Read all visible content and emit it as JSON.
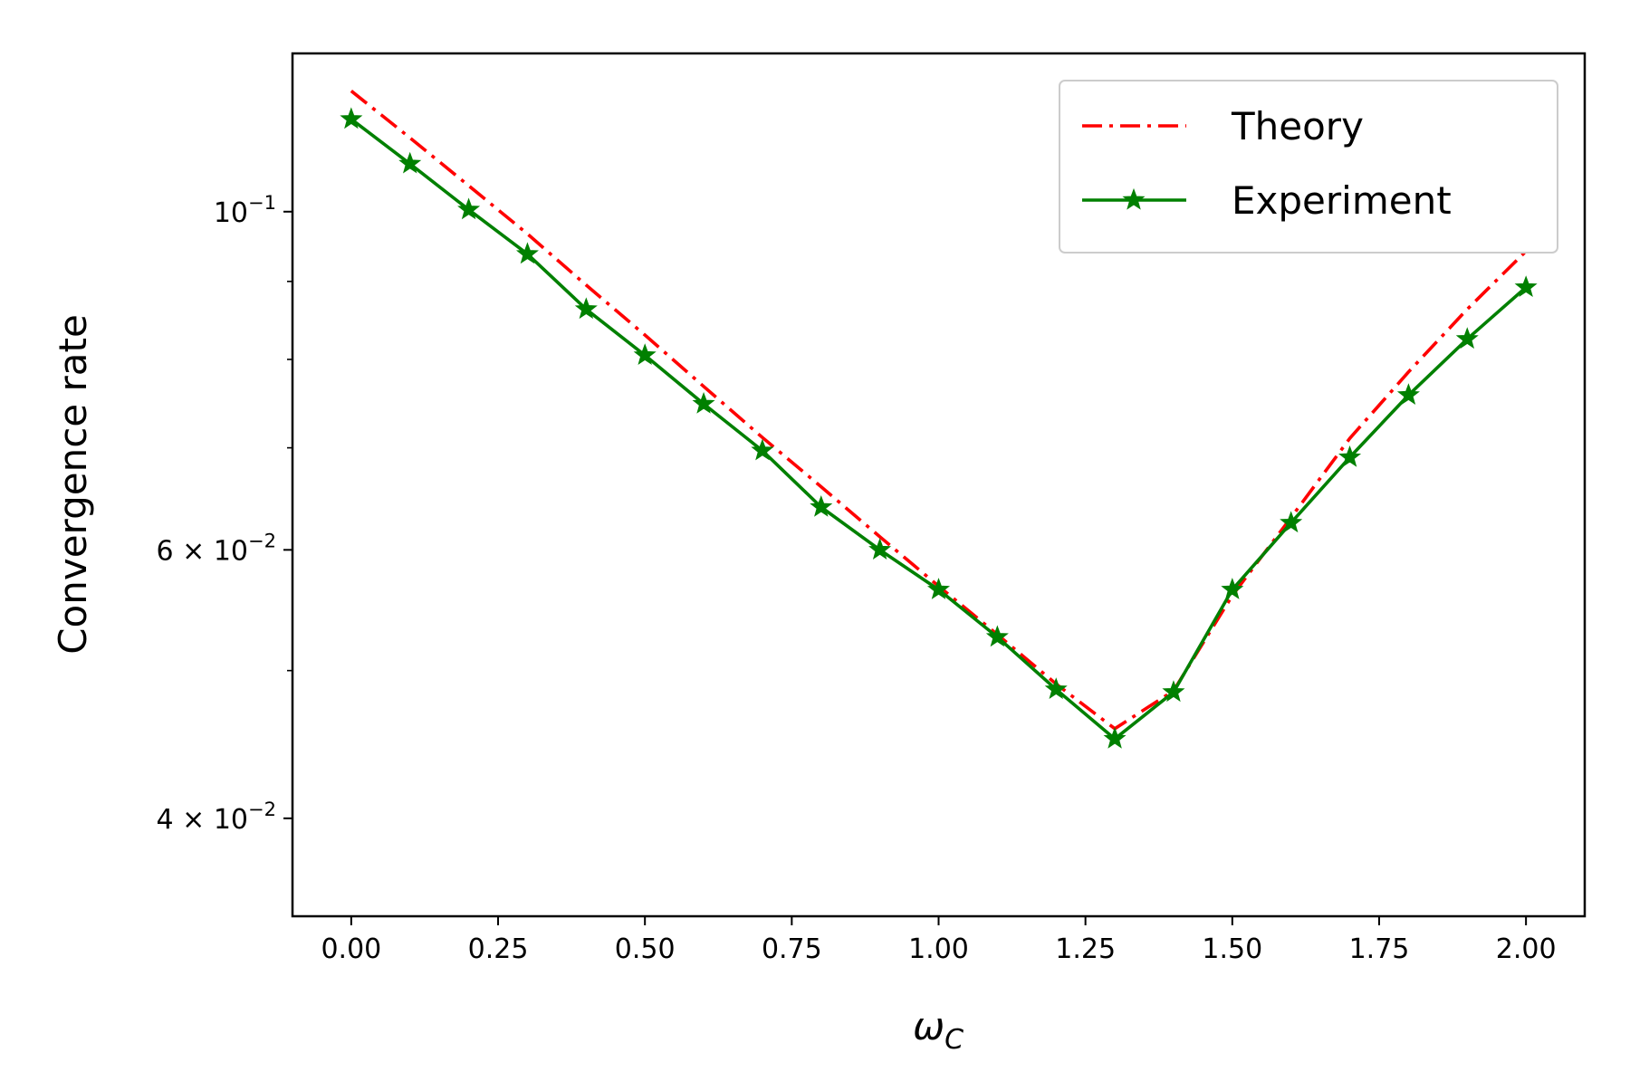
{
  "chart_data": {
    "type": "line",
    "title": "",
    "xlabel": "ω_C",
    "ylabel": "Convergence rate",
    "yscale": "log",
    "xlim": [
      -0.1,
      2.1
    ],
    "ylim": [
      0.0345,
      0.127
    ],
    "grid": false,
    "legend_position": "top-right",
    "x_ticks": [
      {
        "value": 0.0,
        "label": "0.00"
      },
      {
        "value": 0.25,
        "label": "0.25"
      },
      {
        "value": 0.5,
        "label": "0.50"
      },
      {
        "value": 0.75,
        "label": "0.75"
      },
      {
        "value": 1.0,
        "label": "1.00"
      },
      {
        "value": 1.25,
        "label": "1.25"
      },
      {
        "value": 1.5,
        "label": "1.50"
      },
      {
        "value": 1.75,
        "label": "1.75"
      },
      {
        "value": 2.0,
        "label": "2.00"
      }
    ],
    "y_ticks": [
      {
        "value": 0.1,
        "base": "10",
        "exp": "−1",
        "mant": ""
      },
      {
        "value": 0.06,
        "base": "10",
        "exp": "−2",
        "mant": "6 × "
      },
      {
        "value": 0.04,
        "base": "10",
        "exp": "−2",
        "mant": "4 × "
      }
    ],
    "series": [
      {
        "name": "Theory",
        "color": "#ff0000",
        "style": "dashdot",
        "marker": "none",
        "x": [
          0.0,
          0.1,
          0.2,
          0.3,
          0.4,
          0.5,
          0.6,
          0.7,
          0.8,
          0.9,
          1.0,
          1.1,
          1.2,
          1.3,
          1.4,
          1.5,
          1.6,
          1.7,
          1.8,
          1.9,
          2.0
        ],
        "y": [
          0.12,
          0.1118,
          0.104,
          0.0967,
          0.0895,
          0.083,
          0.0768,
          0.0711,
          0.066,
          0.0612,
          0.0568,
          0.0528,
          0.049,
          0.0458,
          0.0485,
          0.056,
          0.063,
          0.071,
          0.0785,
          0.0863,
          0.0942
        ]
      },
      {
        "name": "Experiment",
        "color": "#008000",
        "style": "solid",
        "marker": "star",
        "x": [
          0.0,
          0.1,
          0.2,
          0.3,
          0.4,
          0.5,
          0.6,
          0.7,
          0.8,
          0.9,
          1.0,
          1.1,
          1.2,
          1.3,
          1.4,
          1.5,
          1.6,
          1.7,
          1.8,
          1.9,
          2.0
        ],
        "y": [
          0.115,
          0.1075,
          0.1003,
          0.0938,
          0.0863,
          0.0805,
          0.0748,
          0.0697,
          0.064,
          0.06,
          0.0565,
          0.0526,
          0.0486,
          0.0451,
          0.0484,
          0.0565,
          0.0625,
          0.069,
          0.0758,
          0.0825,
          0.0892
        ]
      }
    ]
  }
}
